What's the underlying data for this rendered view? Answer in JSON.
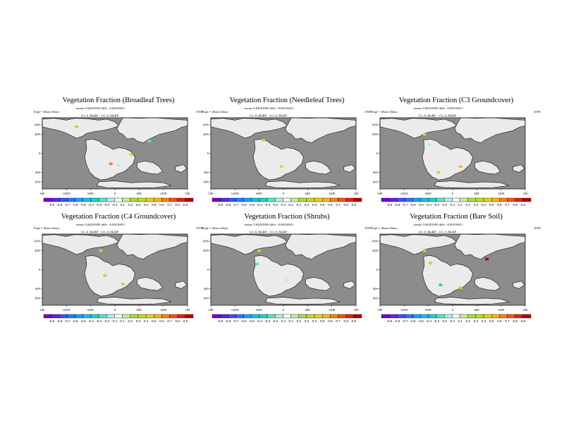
{
  "panels": [
    {
      "title": "Vegetation Fraction (Broadleaf Trees)",
      "stats_line": "mean: 0.04201983 diffs: -0.00216811",
      "runs_line": "111_0_MeBP - 111_0_MeBP",
      "expt_label": "Expt = tfbuw-tfbuw",
      "season": "ANN",
      "blobs": [
        {
          "lon": 40,
          "lat": -2,
          "value": 0.3
        },
        {
          "lon": -10,
          "lat": -22,
          "value": 0.6
        },
        {
          "lon": 8,
          "lat": -25,
          "value": -0.2
        },
        {
          "lon": -95,
          "lat": 56,
          "value": 0.2
        },
        {
          "lon": 85,
          "lat": 26,
          "value": -0.3
        }
      ]
    },
    {
      "title": "Vegetation Fraction (Needleleaf Trees)",
      "stats_line": "mean: 0.04201983 diffs: -0.00216811",
      "runs_line": "111_0_MeBP - 111_0_MeBP",
      "expt_label": "Expt = tfbuw-tfbuw",
      "season": "ANN",
      "blobs": [
        {
          "lon": -50,
          "lat": 28,
          "value": 0.2
        },
        {
          "lon": -5,
          "lat": -28,
          "value": 0.4
        }
      ]
    },
    {
      "title": "Vegetation Fraction (C3 Groundcover)",
      "stats_line": "mean: 0.04201983 diffs: -0.00216811",
      "runs_line": "111_0_MeBP - 111_0_MeBP",
      "expt_label": "Expt = tfbuw-tfbuw",
      "season": "ANN",
      "blobs": [
        {
          "lon": -58,
          "lat": 18,
          "value": -0.2
        },
        {
          "lon": -35,
          "lat": -40,
          "value": 0.3
        },
        {
          "lon": 20,
          "lat": -28,
          "value": 0.5
        },
        {
          "lon": -70,
          "lat": 40,
          "value": 0.3
        }
      ]
    },
    {
      "title": "Vegetation Fraction (C4 Groundcover)",
      "stats_line": "mean: 0.04201983 diffs: -0.00216811",
      "runs_line": "111_0_MeBP - 111_0_MeBP",
      "expt_label": "Expt = tfbuw-tfbuw",
      "season": "ANN",
      "blobs": [
        {
          "lon": 20,
          "lat": -30,
          "value": 0.4
        },
        {
          "lon": -25,
          "lat": -12,
          "value": 0.2
        },
        {
          "lon": -35,
          "lat": 40,
          "value": 0.2
        }
      ]
    },
    {
      "title": "Vegetation Fraction (Shrubs)",
      "stats_line": "mean: 0.04201983 diffs: -0.00216811",
      "runs_line": "111_0_MeBP - 111_0_MeBP",
      "expt_label": "Expt = tfbuw-tfbuw",
      "season": "ANN",
      "blobs": [
        {
          "lon": -65,
          "lat": 12,
          "value": -0.3
        },
        {
          "lon": -60,
          "lat": 40,
          "value": 0.3
        },
        {
          "lon": 8,
          "lat": -22,
          "value": -0.2
        }
      ]
    },
    {
      "title": "Vegetation Fraction (Bare Soil)",
      "stats_line": "mean: 0.04201983 diffs: -0.00216811",
      "runs_line": "111_0_MeBP - 111_0_MeBP",
      "expt_label": "Expt = tfbuw-tfbuw",
      "season": "ANN",
      "blobs": [
        {
          "lon": -55,
          "lat": 14,
          "value": 0.4
        },
        {
          "lon": 85,
          "lat": 22,
          "value": 0.9
        },
        {
          "lon": -30,
          "lat": -32,
          "value": -0.4
        },
        {
          "lon": 20,
          "lat": -38,
          "value": 0.3
        },
        {
          "lon": -70,
          "lat": 40,
          "value": 0.2
        }
      ]
    }
  ],
  "axes": {
    "x_ticks": [
      "180",
      "120W",
      "60W",
      "0",
      "60E",
      "120E",
      "180"
    ],
    "y_ticks": [
      "60N",
      "40N",
      "0",
      "40S",
      "60S"
    ]
  },
  "colorbar": {
    "labels": [
      "-0.9",
      "-0.8",
      "-0.7",
      "-0.6",
      "-0.5",
      "-0.4",
      "-0.3",
      "-0.2",
      "-0.1",
      "0.1",
      "0.2",
      "0.3",
      "0.4",
      "0.5",
      "0.6",
      "0.7",
      "0.8",
      "0.9"
    ],
    "colors": [
      "#7a00c8",
      "#5a28e6",
      "#3c50ff",
      "#2678ff",
      "#19a0ff",
      "#12c2f0",
      "#14d8c8",
      "#5ee6b8",
      "#b4f0e6",
      "#ffffff",
      "#c8f096",
      "#aade3c",
      "#c8dc14",
      "#e6d214",
      "#ffb414",
      "#ff8214",
      "#ff5014",
      "#e61e1e",
      "#b40000"
    ]
  },
  "style": {
    "ocean": "#8c8c8c",
    "land": "#ebebeb"
  }
}
